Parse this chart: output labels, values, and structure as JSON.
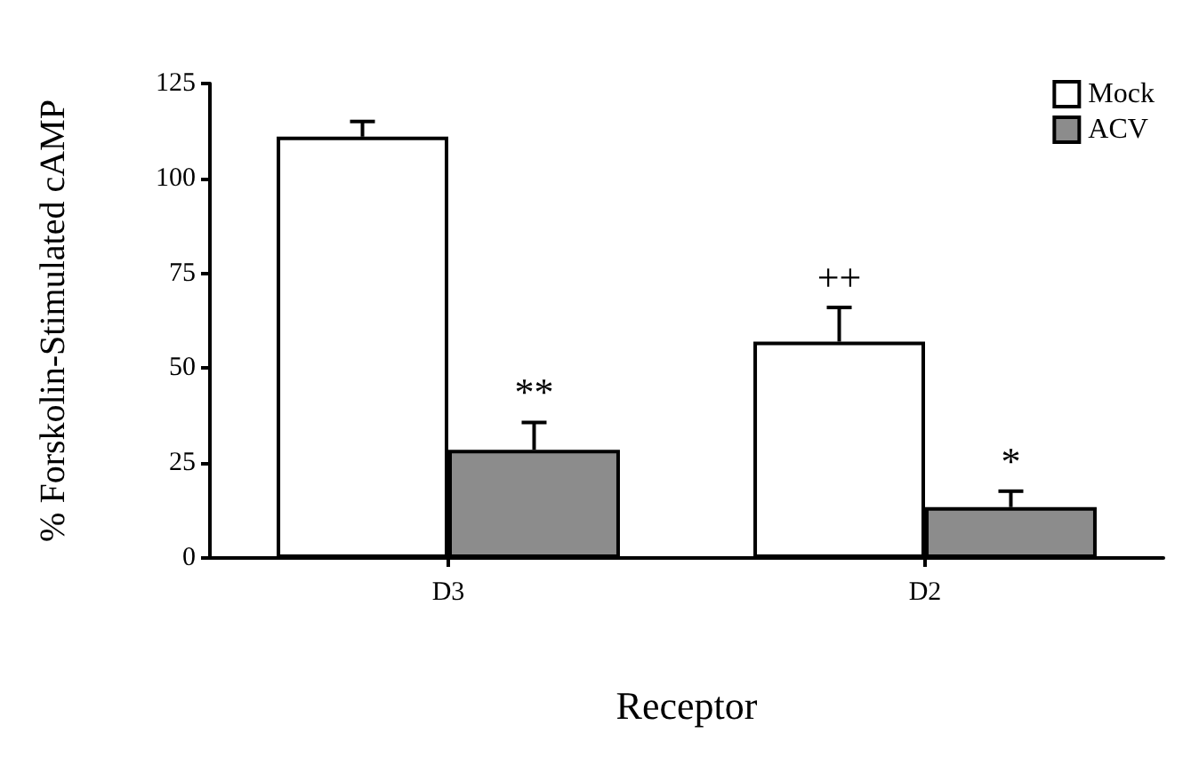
{
  "chart_data": {
    "type": "bar",
    "xlabel": "Receptor",
    "ylabel": "% Forskolin-Stimulated cAMP",
    "categories": [
      "D3",
      "D2"
    ],
    "series": [
      {
        "name": "Mock",
        "color": "#ffffff",
        "values": [
          111,
          57
        ],
        "errors": [
          [
            111,
            115
          ],
          [
            57,
            66
          ]
        ]
      },
      {
        "name": "ACV",
        "color": "#8c8c8c",
        "values": [
          28.5,
          13.4
        ],
        "errors": [
          [
            28.5,
            35.7
          ],
          [
            13.4,
            17.6
          ]
        ]
      }
    ],
    "ylim": [
      0,
      125
    ],
    "yticks": [
      0,
      25,
      50,
      75,
      100,
      125
    ],
    "grid": false,
    "legend": "top right",
    "annotations": [
      {
        "text": "**",
        "x": "D3",
        "y": 28.5
      },
      {
        "text": "++",
        "x": "D2",
        "y": 57
      },
      {
        "text": "*",
        "x": "D2",
        "y": 13.4
      }
    ]
  }
}
